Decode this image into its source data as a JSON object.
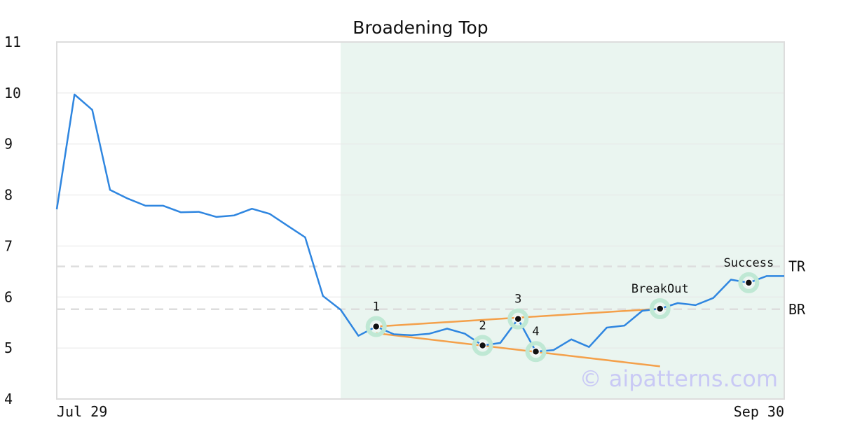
{
  "chart_data": {
    "type": "line",
    "title": "Broadening Top",
    "xlabel": "",
    "ylabel": "",
    "ylim": [
      4,
      11
    ],
    "y_ticks": [
      "4",
      "5",
      "6",
      "7",
      "8",
      "9",
      "10",
      "11"
    ],
    "x_tick_labels": [
      "Jul 29",
      "Sep 30"
    ],
    "grid": true,
    "series": [
      {
        "color": "#2f86e0",
        "values": [
          7.72,
          9.97,
          9.67,
          8.1,
          7.93,
          7.79,
          7.79,
          7.66,
          7.67,
          7.57,
          7.6,
          7.73,
          7.63,
          7.4,
          7.17,
          6.02,
          5.75,
          5.24,
          5.42,
          5.27,
          5.25,
          5.28,
          5.38,
          5.28,
          5.05,
          5.1,
          5.57,
          4.93,
          4.96,
          5.17,
          5.02,
          5.4,
          5.44,
          5.73,
          5.77,
          5.88,
          5.84,
          5.98,
          6.34,
          6.28,
          6.41,
          6.41
        ]
      }
    ],
    "highlight": {
      "start_index": 16,
      "end_index": 41,
      "color": "#eaf5f0"
    },
    "levels": [
      {
        "label": "TR",
        "value": 6.6
      },
      {
        "label": "BR",
        "value": 5.76
      }
    ],
    "trendlines": [
      {
        "color": "#f4a04a",
        "from": {
          "index": 18,
          "value": 5.42
        },
        "to": {
          "index": 34,
          "value": 5.77
        }
      },
      {
        "color": "#f4a04a",
        "from": {
          "index": 18,
          "value": 5.29
        },
        "to": {
          "index": 34,
          "value": 4.64
        }
      }
    ],
    "annotations": [
      {
        "label": "1",
        "index": 18,
        "value": 5.42,
        "label_pos": "above"
      },
      {
        "label": "2",
        "index": 24,
        "value": 5.05,
        "label_pos": "above"
      },
      {
        "label": "3",
        "index": 26,
        "value": 5.57,
        "label_pos": "above"
      },
      {
        "label": "4",
        "index": 27,
        "value": 4.93,
        "label_pos": "above"
      },
      {
        "label": "BreakOut",
        "index": 34,
        "value": 5.77,
        "label_pos": "above"
      },
      {
        "label": "Success",
        "index": 39,
        "value": 6.28,
        "label_pos": "above"
      }
    ],
    "marker_ring_color": "#bfe8d4",
    "watermark": "© aipatterns.com",
    "colors": {
      "grid": "#e6e6e6",
      "frame": "#dddddd",
      "level_line": "#dddddd"
    }
  }
}
